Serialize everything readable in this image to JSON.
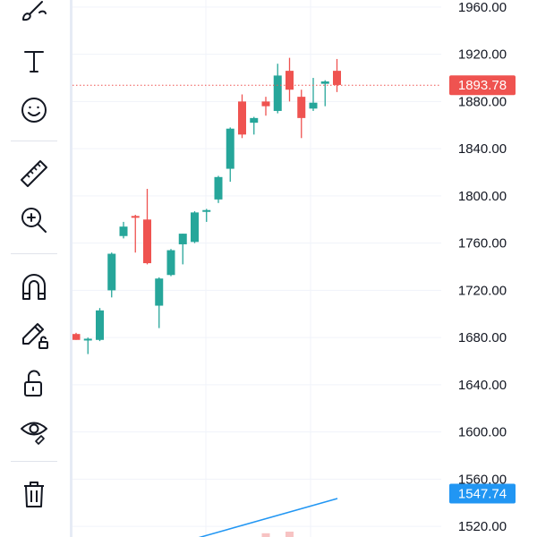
{
  "toolbar": {
    "tools": [
      {
        "name": "brush-tool",
        "icon": "brush-icon"
      },
      {
        "name": "text-tool",
        "icon": "text-icon"
      },
      {
        "name": "emoji-tool",
        "icon": "smiley-icon"
      },
      {
        "name": "ruler-tool",
        "icon": "ruler-icon"
      },
      {
        "name": "zoom-in-tool",
        "icon": "zoom-in-icon"
      },
      {
        "name": "magnet-tool",
        "icon": "magnet-icon"
      },
      {
        "name": "lock-drawings-tool",
        "icon": "pencil-lock-icon"
      },
      {
        "name": "lock-tool",
        "icon": "unlock-icon"
      },
      {
        "name": "hide-tool",
        "icon": "eye-icon"
      },
      {
        "name": "delete-tool",
        "icon": "trash-icon"
      }
    ]
  },
  "colors": {
    "up": "#26a69a",
    "down": "#ef5350",
    "grid": "#f0f3fa",
    "current_price_tag": "#ef5350",
    "ma_line": "#2196f3",
    "ma_tag": "#2196f3",
    "volume_down": "#f7c3c3"
  },
  "chart_data": {
    "type": "candlestick",
    "price_axis_labels": [
      "1960.00",
      "1920.00",
      "1880.00",
      "1840.00",
      "1800.00",
      "1760.00",
      "1720.00",
      "1680.00",
      "1640.00",
      "1600.00",
      "1560.00",
      "1520.00"
    ],
    "price_range": [
      1511,
      1966
    ],
    "current_price": {
      "value": 1893.78,
      "label": "1893.78"
    },
    "moving_average": {
      "value": 1547.74,
      "label": "1547.74"
    },
    "candles": [
      {
        "o": 1683,
        "h": 1684,
        "l": 1678,
        "c": 1678
      },
      {
        "o": 1678,
        "h": 1680,
        "l": 1666,
        "c": 1679
      },
      {
        "o": 1678,
        "h": 1705,
        "l": 1677,
        "c": 1703
      },
      {
        "o": 1720,
        "h": 1752,
        "l": 1714,
        "c": 1751
      },
      {
        "o": 1766,
        "h": 1778,
        "l": 1764,
        "c": 1774
      },
      {
        "o": 1783,
        "h": 1784,
        "l": 1752,
        "c": 1782
      },
      {
        "o": 1780,
        "h": 1806,
        "l": 1742,
        "c": 1743
      },
      {
        "o": 1707,
        "h": 1731,
        "l": 1688,
        "c": 1730
      },
      {
        "o": 1733,
        "h": 1755,
        "l": 1732,
        "c": 1754
      },
      {
        "o": 1759,
        "h": 1768,
        "l": 1742,
        "c": 1768
      },
      {
        "o": 1761,
        "h": 1787,
        "l": 1760,
        "c": 1786
      },
      {
        "o": 1787,
        "h": 1789,
        "l": 1778,
        "c": 1788
      },
      {
        "o": 1797,
        "h": 1817,
        "l": 1794,
        "c": 1816
      },
      {
        "o": 1823,
        "h": 1858,
        "l": 1812,
        "c": 1857
      },
      {
        "o": 1880,
        "h": 1886,
        "l": 1849,
        "c": 1852
      },
      {
        "o": 1862,
        "h": 1867,
        "l": 1852,
        "c": 1866
      },
      {
        "o": 1880,
        "h": 1884,
        "l": 1868,
        "c": 1876
      },
      {
        "o": 1872,
        "h": 1912,
        "l": 1870,
        "c": 1902
      },
      {
        "o": 1906,
        "h": 1917,
        "l": 1880,
        "c": 1890
      },
      {
        "o": 1884,
        "h": 1890,
        "l": 1849,
        "c": 1866
      },
      {
        "o": 1874,
        "h": 1900,
        "l": 1872,
        "c": 1879
      },
      {
        "o": 1895,
        "h": 1898,
        "l": 1876,
        "c": 1897
      },
      {
        "o": 1906,
        "h": 1916,
        "l": 1888,
        "c": 1894
      }
    ],
    "volume_bars": [
      {
        "index": 16,
        "value": 0.35
      },
      {
        "index": 18,
        "value": 0.5
      }
    ]
  }
}
